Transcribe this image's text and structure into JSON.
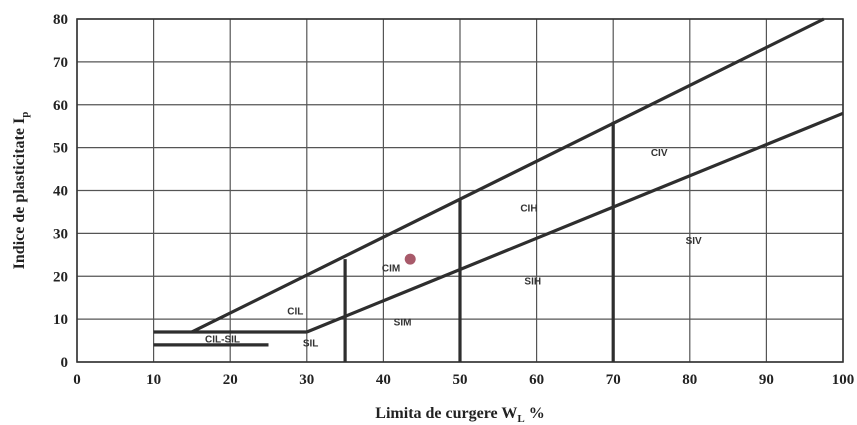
{
  "chart_data": {
    "type": "scatter",
    "title": "",
    "xlabel": "Limita de curgere W",
    "xlabel_sub": "L",
    "xlabel_suffix": " %",
    "ylabel": "Indice de plasticitate I",
    "ylabel_sub": "p",
    "xlim": [
      0,
      100
    ],
    "ylim": [
      0,
      80
    ],
    "x_ticks": [
      0,
      10,
      20,
      30,
      40,
      50,
      60,
      70,
      80,
      90,
      100
    ],
    "y_ticks": [
      0,
      10,
      20,
      30,
      40,
      50,
      60,
      70,
      80
    ],
    "grid": true,
    "boundary_lines": [
      {
        "name": "A-line (upper)",
        "points": [
          [
            15,
            7
          ],
          [
            97.5,
            80
          ]
        ]
      },
      {
        "name": "lower diagonal",
        "points": [
          [
            30,
            7
          ],
          [
            100,
            58
          ]
        ]
      },
      {
        "name": "upper horizontal",
        "points": [
          [
            10,
            7
          ],
          [
            30,
            7
          ]
        ]
      },
      {
        "name": "lower horizontal",
        "points": [
          [
            10,
            4
          ],
          [
            25,
            4
          ]
        ]
      },
      {
        "name": "WL=35",
        "points": [
          [
            35,
            0
          ],
          [
            35,
            24
          ]
        ]
      },
      {
        "name": "WL=50",
        "points": [
          [
            50,
            0
          ],
          [
            50,
            38
          ]
        ]
      },
      {
        "name": "WL=70",
        "points": [
          [
            70,
            0
          ],
          [
            70,
            56
          ]
        ]
      }
    ],
    "zone_labels": [
      {
        "text": "CIL",
        "x": 28.5,
        "y": 12
      },
      {
        "text": "CIL-SIL",
        "x": 19,
        "y": 5.5
      },
      {
        "text": "SIL",
        "x": 30.5,
        "y": 4.5
      },
      {
        "text": "CIM",
        "x": 41,
        "y": 22
      },
      {
        "text": "SIM",
        "x": 42.5,
        "y": 9.5
      },
      {
        "text": "CIH",
        "x": 59,
        "y": 36
      },
      {
        "text": "SIH",
        "x": 59.5,
        "y": 19
      },
      {
        "text": "CIV",
        "x": 76,
        "y": 49
      },
      {
        "text": "SIV",
        "x": 80.5,
        "y": 28.5
      }
    ],
    "points": [
      {
        "x": 43.5,
        "y": 24,
        "color": "#a85a6a"
      }
    ]
  }
}
